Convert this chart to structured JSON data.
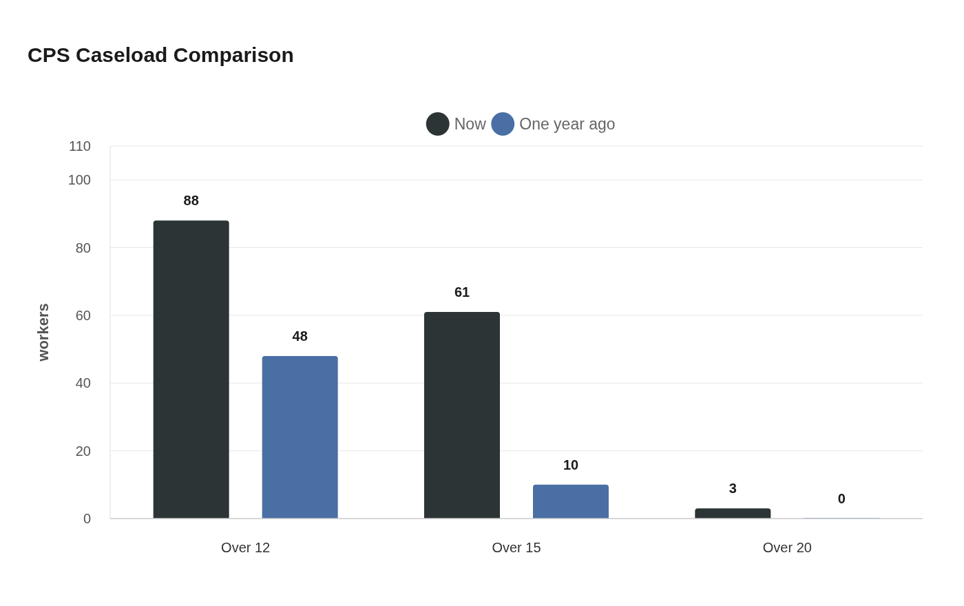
{
  "chart_data": {
    "type": "bar",
    "title": "CPS Caseload Comparison",
    "ylabel": "workers",
    "categories": [
      "Over 12",
      "Over 15",
      "Over 20"
    ],
    "series": [
      {
        "name": "Now",
        "color": "#2d3436",
        "values": [
          88,
          61,
          3
        ]
      },
      {
        "name": "One year ago",
        "color": "#4a6fa5",
        "values": [
          48,
          10,
          0
        ]
      }
    ],
    "ylim": [
      0,
      110
    ],
    "yticks": [
      0,
      20,
      40,
      60,
      80,
      100,
      110
    ],
    "grid": "y",
    "legend": "top",
    "data_labels": true
  }
}
